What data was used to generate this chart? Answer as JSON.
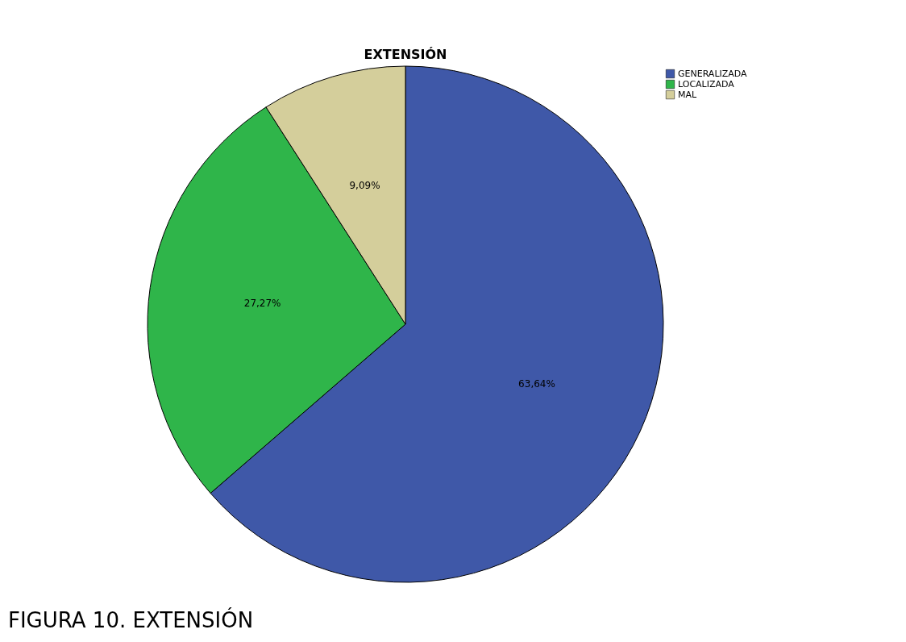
{
  "chart_data": {
    "type": "pie",
    "title": "EXTENSIÓN",
    "categories": [
      "GENERALIZADA",
      "LOCALIZADA",
      "MAL"
    ],
    "values": [
      63.64,
      27.27,
      9.09
    ],
    "colors": [
      "#3f58a8",
      "#2fb54a",
      "#d4ce9b"
    ],
    "value_labels": [
      "63,64%",
      "27,27%",
      "9,09%"
    ],
    "legend": "top right",
    "annotations": [
      "FIGURA 10. EXTENSIÓN"
    ]
  }
}
